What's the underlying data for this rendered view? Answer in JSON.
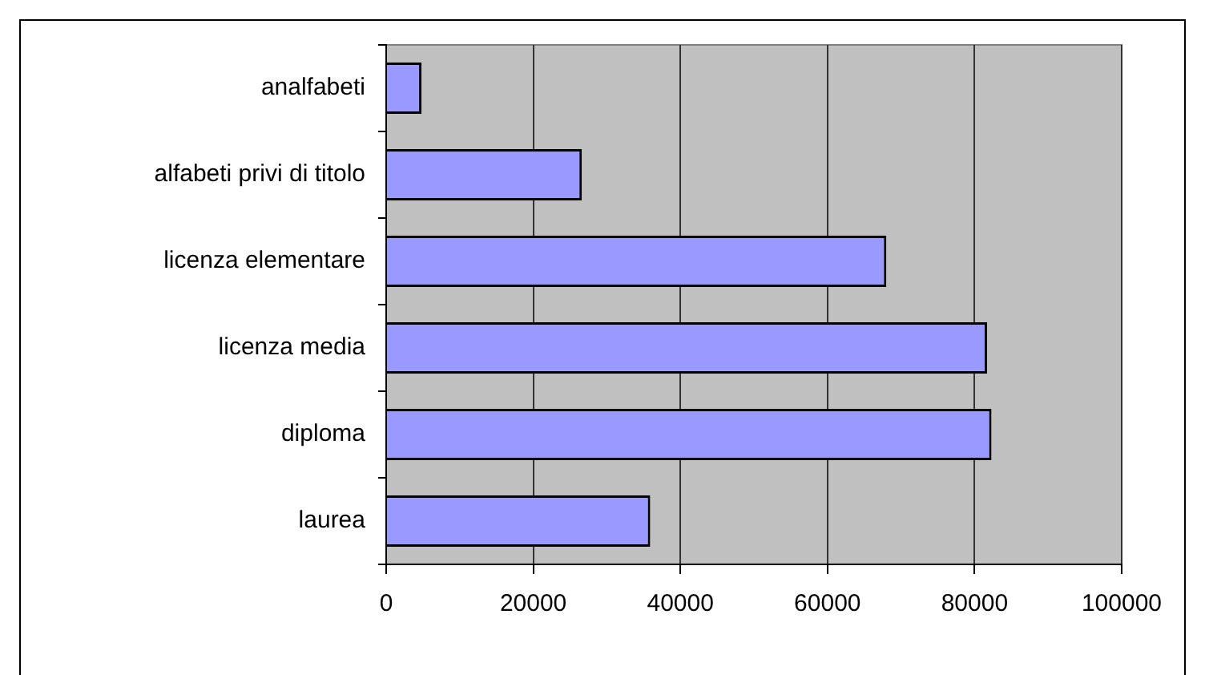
{
  "chart_data": {
    "type": "bar",
    "orientation": "horizontal",
    "categories": [
      "analfabeti",
      "alfabeti privi di titolo",
      "licenza elementare",
      "licenza media",
      "diploma",
      "laurea"
    ],
    "values": [
      4800,
      26600,
      68000,
      81700,
      82300,
      35900
    ],
    "color": "#9999ff",
    "xlim": [
      0,
      100000
    ],
    "xticks": [
      0,
      20000,
      40000,
      60000,
      80000,
      100000
    ],
    "grid": "x",
    "legend": false
  }
}
